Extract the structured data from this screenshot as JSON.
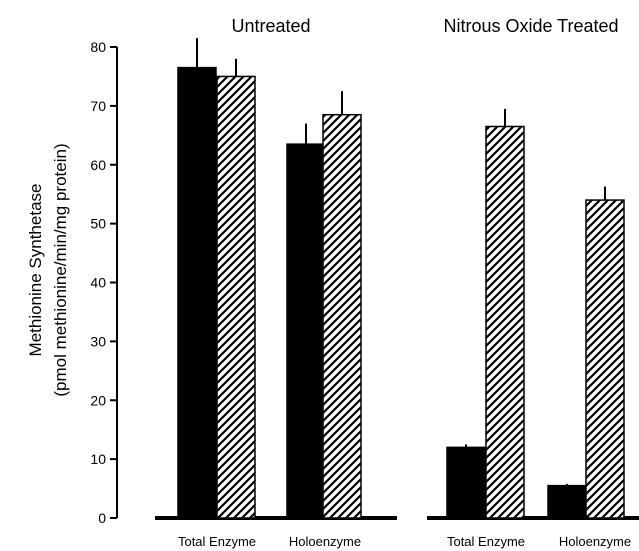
{
  "chart_data": [
    {
      "type": "bar",
      "title": "Untreated",
      "categories": [
        "Total Enzyme",
        "Holoenzyme"
      ],
      "series": [
        {
          "pattern": "solid",
          "color": "#000000",
          "values": [
            76.5,
            63.5
          ],
          "errors": [
            5.0,
            3.5
          ]
        },
        {
          "pattern": "hatched",
          "color": "#000000",
          "values": [
            75.0,
            68.5
          ],
          "errors": [
            3.0,
            4.0
          ]
        }
      ],
      "ylabel_line1": "Methionine Synthetase",
      "ylabel_line2": "(pmol methionine/min/mg protein)",
      "yticks": [
        "0",
        "10",
        "20",
        "30",
        "40",
        "50",
        "60",
        "70",
        "80"
      ],
      "ylim": [
        0,
        80
      ]
    },
    {
      "type": "bar",
      "title": "Nitrous Oxide Treated",
      "categories": [
        "Total Enzyme",
        "Holoenzyme"
      ],
      "series": [
        {
          "pattern": "solid",
          "color": "#000000",
          "values": [
            12.0,
            5.5
          ],
          "errors": [
            0.5,
            0.3
          ]
        },
        {
          "pattern": "hatched",
          "color": "#000000",
          "values": [
            66.5,
            54.0
          ],
          "errors": [
            3.0,
            2.3
          ]
        }
      ],
      "ylim": [
        0,
        80
      ]
    }
  ]
}
